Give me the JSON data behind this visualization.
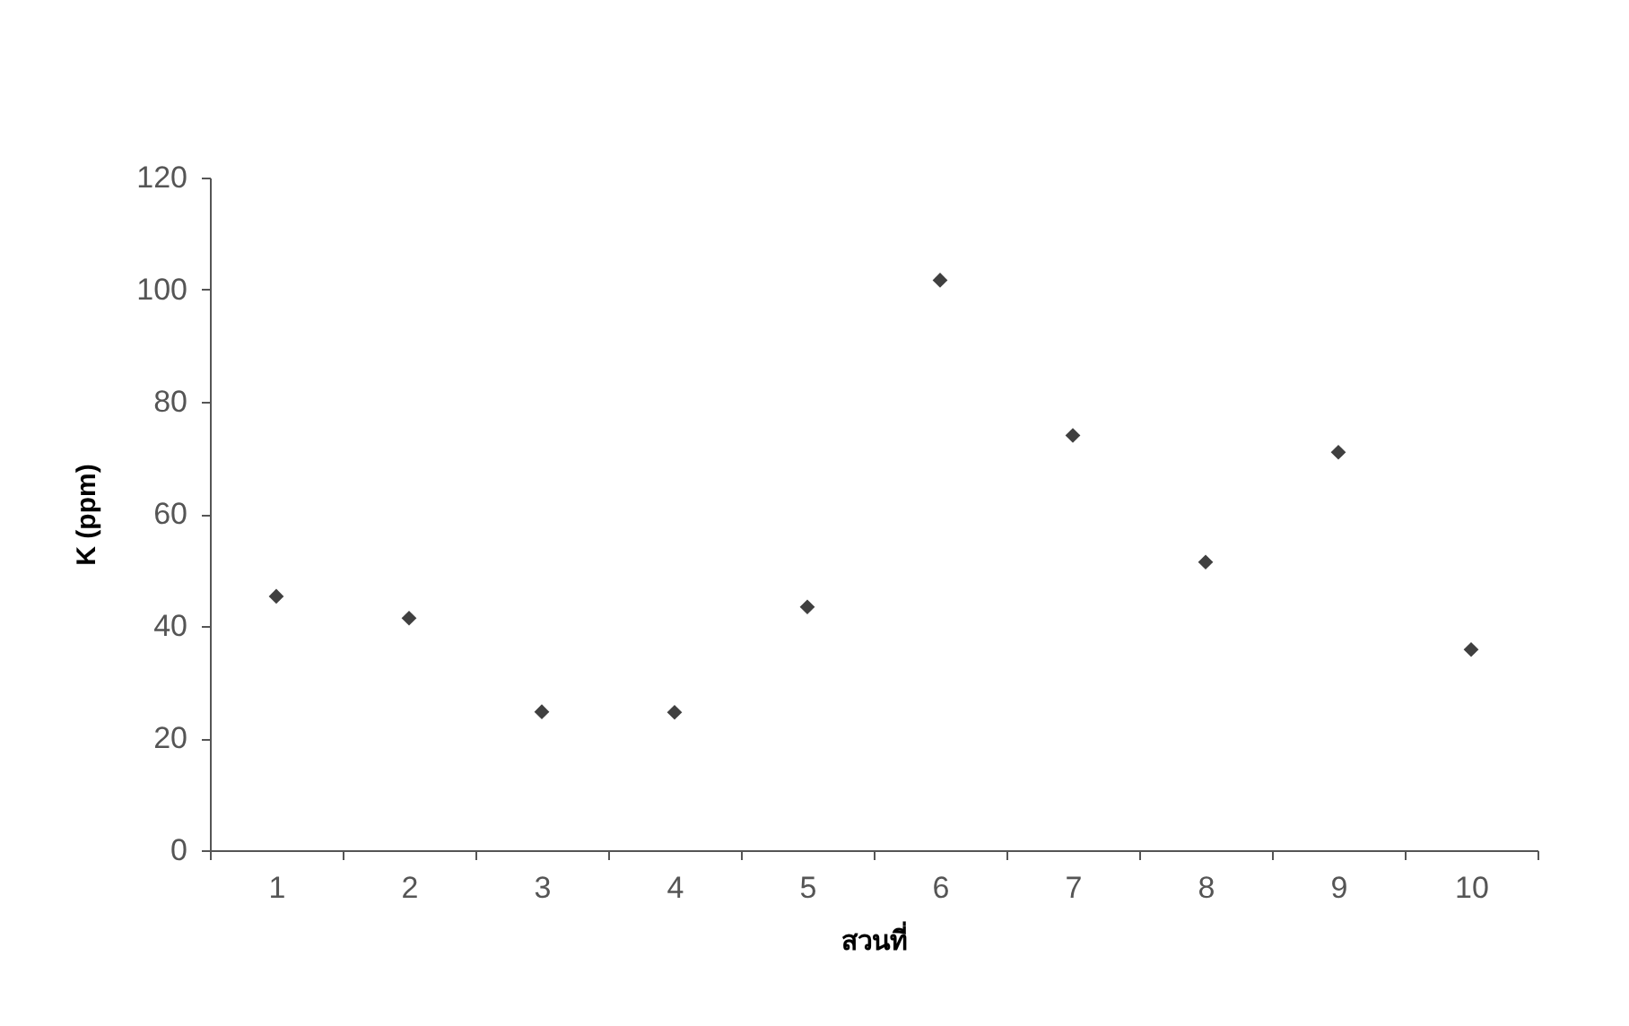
{
  "chart_data": {
    "type": "scatter",
    "xlabel": "สวนที่",
    "ylabel": "K (ppm)",
    "categories": [
      "1",
      "2",
      "3",
      "4",
      "5",
      "6",
      "7",
      "8",
      "9",
      "10"
    ],
    "series": [
      {
        "color": "#404040",
        "values": [
          45.3,
          41.4,
          24.7,
          24.6,
          43.4,
          101.7,
          74.0,
          51.4,
          71.0,
          35.8
        ]
      }
    ],
    "ylim": [
      0,
      120
    ],
    "yticks": [
      0,
      20,
      40,
      60,
      80,
      100,
      120
    ],
    "grid": false,
    "marker": "diamond"
  }
}
